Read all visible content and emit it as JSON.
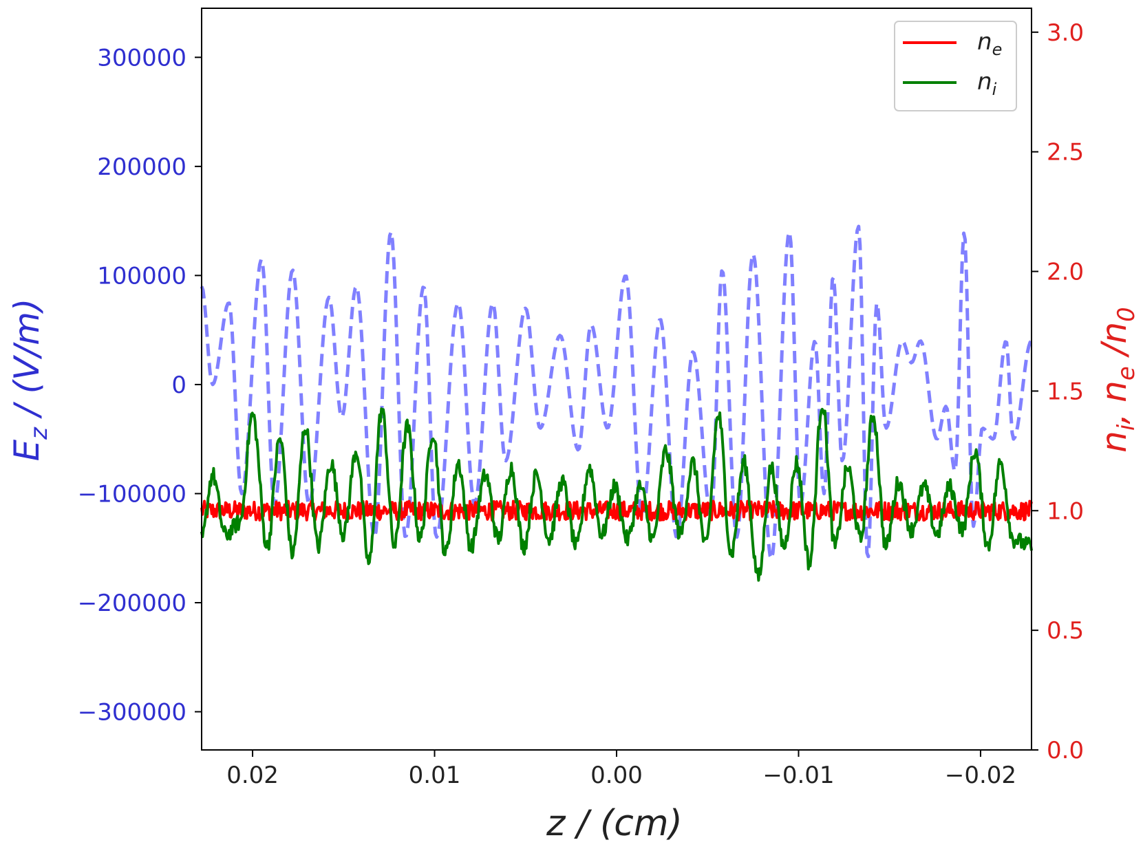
{
  "chart_data": {
    "type": "line",
    "title": "",
    "x_axis": {
      "label_main": "z",
      "label_unit": " / (cm)",
      "range": [
        0.0228,
        -0.0228
      ],
      "reversed": true,
      "ticks": [
        0.02,
        0.01,
        0.0,
        -0.01,
        -0.02
      ],
      "tick_labels": [
        "0.02",
        "0.01",
        "0.00",
        "−0.01",
        "−0.02"
      ]
    },
    "y_left": {
      "label_main": "E",
      "label_sub": "z",
      "label_unit": " / (V/m)",
      "color": "#2f2fd0",
      "range": [
        -335000,
        345000
      ],
      "ticks": [
        300000,
        200000,
        100000,
        0,
        -100000,
        -200000,
        -300000
      ],
      "tick_labels": [
        "300000",
        "200000",
        "100000",
        "0",
        "−100000",
        "−200000",
        "−300000"
      ]
    },
    "y_right": {
      "label_n1": "n",
      "label_sub1": "i",
      "label_sep": ", ",
      "label_n2": "n",
      "label_sub2": "e",
      "label_slash": " /",
      "label_n3": "n",
      "label_sub3": "0",
      "color": "#e0201e",
      "range": [
        0.0,
        3.1
      ],
      "ticks": [
        3.0,
        2.5,
        2.0,
        1.5,
        1.0,
        0.5,
        0.0
      ],
      "tick_labels": [
        "3.0",
        "2.5",
        "2.0",
        "1.5",
        "1.0",
        "0.5",
        "0.0"
      ]
    },
    "legend": {
      "placement": "upper-right",
      "entries": [
        {
          "main": "n",
          "sub": "e",
          "color": "#ff0000"
        },
        {
          "main": "n",
          "sub": "i",
          "color": "#008000"
        }
      ]
    },
    "grid": false,
    "series": [
      {
        "key": "ez",
        "axis": "left",
        "color": "#8080ff",
        "dashed": true,
        "x": [
          0.0228,
          0.0222,
          0.0213,
          0.0206,
          0.0195,
          0.0188,
          0.0178,
          0.0169,
          0.0158,
          0.0151,
          0.0143,
          0.0133,
          0.0124,
          0.0116,
          0.0106,
          0.0099,
          0.0087,
          0.0078,
          0.0068,
          0.0061,
          0.005,
          0.0042,
          0.0031,
          0.0021,
          0.0014,
          0.0005,
          -0.0005,
          -0.0014,
          -0.0024,
          -0.0033,
          -0.0042,
          -0.0052,
          -0.0058,
          -0.0066,
          -0.0075,
          -0.0085,
          -0.0095,
          -0.0101,
          -0.0109,
          -0.0114,
          -0.0119,
          -0.0124,
          -0.0133,
          -0.0138,
          -0.0143,
          -0.0148,
          -0.0157,
          -0.0162,
          -0.0167,
          -0.0176,
          -0.0181,
          -0.0186,
          -0.0191,
          -0.0196,
          -0.0201,
          -0.0207,
          -0.0214,
          -0.0218,
          -0.0228
        ],
        "y": [
          90000,
          0,
          75000,
          -100000,
          115000,
          -110000,
          105000,
          -110000,
          80000,
          -30000,
          90000,
          -140000,
          140000,
          -140000,
          90000,
          -140000,
          75000,
          -110000,
          75000,
          -70000,
          70000,
          -40000,
          45000,
          -60000,
          55000,
          -40000,
          100000,
          -120000,
          60000,
          -140000,
          30000,
          -120000,
          105000,
          -140000,
          120000,
          -160000,
          140000,
          -110000,
          40000,
          -100000,
          100000,
          -70000,
          145000,
          -160000,
          75000,
          -40000,
          40000,
          20000,
          40000,
          -50000,
          -20000,
          -80000,
          140000,
          -130000,
          -40000,
          -50000,
          40000,
          -50000,
          40000
        ]
      },
      {
        "key": "ne",
        "axis": "right",
        "color": "#ff0000",
        "dashed": false,
        "x": [
          0.0228,
          -0.0228
        ],
        "y": [
          1.0,
          1.0
        ],
        "noise": 0.04
      },
      {
        "key": "ni",
        "axis": "right",
        "color": "#008000",
        "dashed": false,
        "x": [
          0.0228,
          0.0222,
          0.0215,
          0.0207,
          0.02,
          0.0192,
          0.0185,
          0.0178,
          0.0171,
          0.0164,
          0.0157,
          0.015,
          0.0143,
          0.0136,
          0.0129,
          0.0122,
          0.0115,
          0.0108,
          0.0101,
          0.0094,
          0.0087,
          0.008,
          0.0072,
          0.0065,
          0.0058,
          0.0051,
          0.0044,
          0.0037,
          0.003,
          0.0022,
          0.0015,
          0.0008,
          0.0001,
          -0.0006,
          -0.0013,
          -0.002,
          -0.0027,
          -0.0035,
          -0.0042,
          -0.0049,
          -0.0056,
          -0.0063,
          -0.007,
          -0.0078,
          -0.0085,
          -0.0092,
          -0.0099,
          -0.0106,
          -0.0113,
          -0.012,
          -0.0127,
          -0.0134,
          -0.0141,
          -0.0148,
          -0.0155,
          -0.0162,
          -0.0169,
          -0.0176,
          -0.0183,
          -0.019,
          -0.0197,
          -0.0204,
          -0.0211,
          -0.0218,
          -0.0228
        ],
        "y": [
          0.88,
          1.15,
          0.9,
          0.95,
          1.4,
          0.85,
          1.3,
          0.82,
          1.35,
          0.85,
          1.2,
          0.9,
          1.25,
          0.78,
          1.42,
          0.85,
          1.35,
          0.88,
          1.33,
          0.82,
          1.2,
          0.85,
          1.15,
          0.88,
          1.18,
          0.85,
          1.15,
          0.88,
          1.12,
          0.85,
          1.18,
          0.9,
          1.1,
          0.88,
          1.1,
          0.88,
          1.25,
          0.9,
          1.2,
          0.85,
          1.4,
          0.82,
          1.2,
          0.72,
          1.18,
          0.85,
          1.2,
          0.78,
          1.45,
          0.85,
          1.18,
          0.88,
          1.4,
          0.85,
          1.12,
          0.92,
          1.1,
          0.9,
          1.1,
          0.92,
          1.25,
          0.85,
          1.2,
          0.88,
          0.85
        ],
        "noise": 0.035
      }
    ]
  }
}
